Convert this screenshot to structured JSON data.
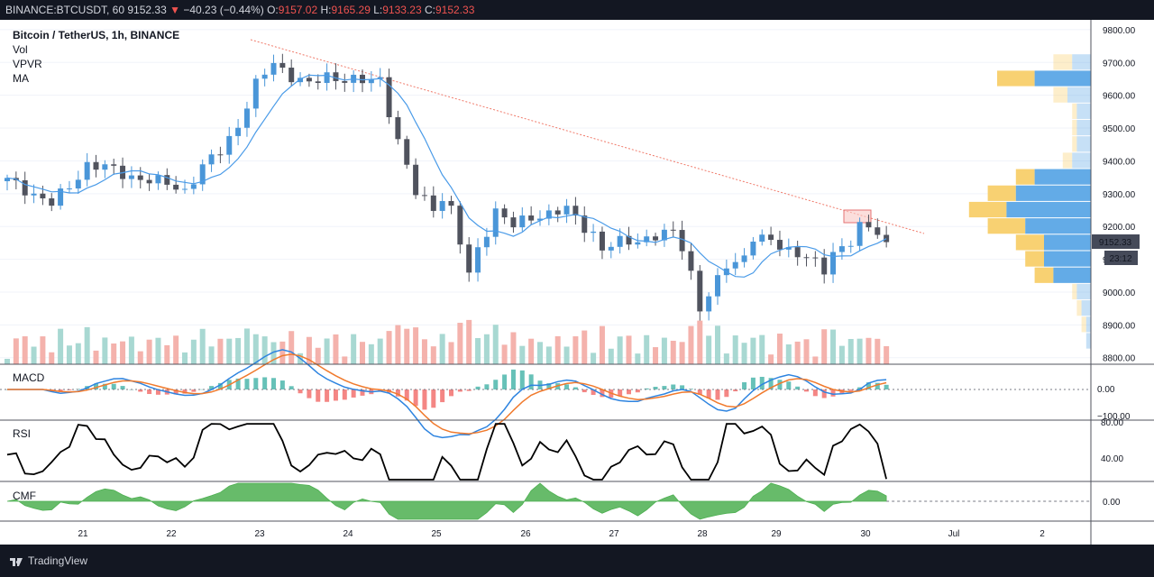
{
  "topbar": {
    "symbol": "BINANCE:BTCUSDT, 60",
    "last": "9152.33",
    "change": "−40.23 (−0.44%)",
    "open_label": "O:",
    "open": "9157.02",
    "high_label": "H:",
    "high": "9165.29",
    "low_label": "L:",
    "low": "9133.23",
    "close_label": "C:",
    "close": "9152.33"
  },
  "legend": {
    "title": "Bitcoin / TetherUS, 1h, BINANCE",
    "vol": "Vol",
    "vpvr": "VPVR",
    "ma": "MA"
  },
  "panes": {
    "macd": "MACD",
    "rsi": "RSI",
    "cmf": "CMF"
  },
  "price_scale": [
    "9800.00",
    "9700.00",
    "9600.00",
    "9500.00",
    "9400.00",
    "9300.00",
    "9200.00",
    "9100.00",
    "9000.00",
    "8900.00",
    "8800.00"
  ],
  "price_tag": {
    "price": "9152.33",
    "countdown": "23:12"
  },
  "macd_scale": [
    "0.00",
    "−100.00"
  ],
  "rsi_scale": [
    "80.00",
    "40.00"
  ],
  "cmf_scale": [
    "0.00"
  ],
  "time_axis": [
    "21",
    "22",
    "23",
    "24",
    "25",
    "26",
    "27",
    "28",
    "29",
    "30",
    "Jul",
    "2"
  ],
  "colors": {
    "up": "#4a96d8",
    "down": "#50535e",
    "ma": "#4a9be8",
    "trend": "#f07a6a",
    "vol_up": "#a8d8d2",
    "vol_down": "#f4b2ac",
    "vpvr_up": "#5ba7e6",
    "vpvr_down": "#f8cf6a",
    "macd_line": "#2e84e0",
    "signal_line": "#f07a2d",
    "cmf": "#4caf50",
    "rsi": "#000000"
  },
  "chart_data": {
    "type": "candlestick",
    "title": "Bitcoin / TetherUS, 1h, BINANCE",
    "ylim": [
      8780,
      9830
    ],
    "x": [
      "21",
      "22",
      "23",
      "24",
      "25",
      "26",
      "27",
      "28",
      "29",
      "30",
      "Jul",
      "2"
    ],
    "anchors": [
      [
        0,
        9340
      ],
      [
        3,
        9300
      ],
      [
        5,
        9270
      ],
      [
        7,
        9320
      ],
      [
        9,
        9390
      ],
      [
        11,
        9380
      ],
      [
        13,
        9360
      ],
      [
        16,
        9340
      ],
      [
        18,
        9330
      ],
      [
        20,
        9310
      ],
      [
        22,
        9380
      ],
      [
        24,
        9430
      ],
      [
        26,
        9510
      ],
      [
        28,
        9630
      ],
      [
        30,
        9700
      ],
      [
        32,
        9660
      ],
      [
        34,
        9630
      ],
      [
        36,
        9660
      ],
      [
        38,
        9650
      ],
      [
        40,
        9640
      ],
      [
        42,
        9650
      ],
      [
        44,
        9460
      ],
      [
        46,
        9300
      ],
      [
        48,
        9260
      ],
      [
        49,
        9290
      ],
      [
        50,
        9250
      ],
      [
        52,
        9050
      ],
      [
        53,
        9130
      ],
      [
        55,
        9250
      ],
      [
        57,
        9200
      ],
      [
        59,
        9230
      ],
      [
        61,
        9240
      ],
      [
        63,
        9250
      ],
      [
        65,
        9200
      ],
      [
        66,
        9180
      ],
      [
        67,
        9130
      ],
      [
        69,
        9150
      ],
      [
        71,
        9160
      ],
      [
        73,
        9170
      ],
      [
        75,
        9180
      ],
      [
        76,
        9140
      ],
      [
        77,
        9060
      ],
      [
        78,
        8950
      ],
      [
        79,
        8990
      ],
      [
        80,
        9030
      ],
      [
        81,
        9080
      ],
      [
        83,
        9110
      ],
      [
        84,
        9170
      ],
      [
        86,
        9150
      ],
      [
        88,
        9130
      ],
      [
        90,
        9110
      ],
      [
        92,
        9060
      ],
      [
        93,
        9120
      ],
      [
        95,
        9160
      ],
      [
        96,
        9200
      ],
      [
        98,
        9180
      ],
      [
        99,
        9155
      ]
    ],
    "vpvr_levels": [
      [
        9700,
        8,
        4
      ],
      [
        9650,
        20,
        12
      ],
      [
        9600,
        8,
        5
      ],
      [
        9550,
        4,
        3
      ],
      [
        9500,
        4,
        3
      ],
      [
        9450,
        4,
        3
      ],
      [
        9400,
        6,
        4
      ],
      [
        9350,
        16,
        12
      ],
      [
        9300,
        22,
        16
      ],
      [
        9250,
        26,
        18
      ],
      [
        9200,
        22,
        14
      ],
      [
        9150,
        16,
        10
      ],
      [
        9100,
        14,
        10
      ],
      [
        9050,
        12,
        8
      ],
      [
        9000,
        4,
        3
      ],
      [
        8950,
        3,
        2
      ],
      [
        8900,
        2,
        1
      ],
      [
        8850,
        1,
        1
      ]
    ]
  }
}
